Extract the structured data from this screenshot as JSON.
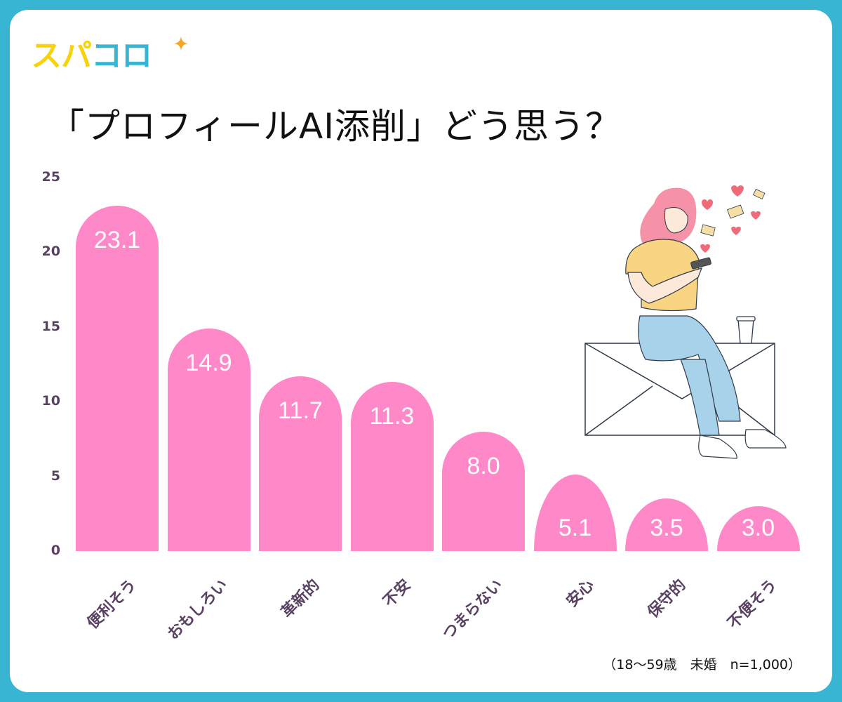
{
  "logo": {
    "part1": "スパ",
    "part2": "コロ",
    "sparkle_color": "#f5a623"
  },
  "title": "「プロフィールAI添削」どう思う？",
  "footnote": "（18〜59歳　未婚　n=1,000）",
  "colors": {
    "frame": "#37b5d3",
    "bar": "#fe88c8",
    "axis_text": "#5a4263",
    "value_text": "#ffffff"
  },
  "y_axis": {
    "ticks": [
      "25",
      "20",
      "15",
      "10",
      "5",
      "0"
    ]
  },
  "bars": [
    {
      "label": "便利そう",
      "value": "23.1"
    },
    {
      "label": "おもしろい",
      "value": "14.9"
    },
    {
      "label": "革新的",
      "value": "11.7"
    },
    {
      "label": "不安",
      "value": "11.3"
    },
    {
      "label": "つまらない",
      "value": "8.0"
    },
    {
      "label": "安心",
      "value": "5.1"
    },
    {
      "label": "保守的",
      "value": "3.5"
    },
    {
      "label": "不便そう",
      "value": "3.0"
    }
  ],
  "chart_data": {
    "type": "bar",
    "title": "「プロフィールAI添削」どう思う？",
    "categories": [
      "便利そう",
      "おもしろい",
      "革新的",
      "不安",
      "つまらない",
      "安心",
      "保守的",
      "不便そう"
    ],
    "values": [
      23.1,
      14.9,
      11.7,
      11.3,
      8.0,
      5.1,
      3.5,
      3.0
    ],
    "xlabel": "",
    "ylabel": "",
    "ylim": [
      0,
      25
    ],
    "yticks": [
      0,
      5,
      10,
      15,
      20,
      25
    ],
    "grid": false,
    "legend": null,
    "annotations": [
      "（18〜59歳　未婚　n=1,000）"
    ],
    "data_labels": true
  }
}
